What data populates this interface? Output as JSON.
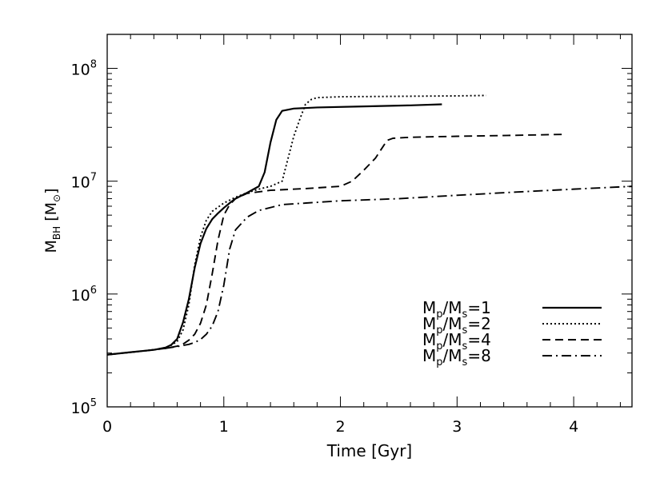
{
  "chart_data": {
    "type": "line",
    "title": "",
    "xlabel": "Time [Gyr]",
    "ylabel": {
      "base": "M",
      "sub": "BH",
      "unit": "[M",
      "unit_sub": "⊙",
      "unit_close": "]"
    },
    "xlim": [
      0,
      4.5
    ],
    "ylim": [
      100000,
      200000000
    ],
    "yscale": "log",
    "grid": false,
    "legend_placement": "bottom-right",
    "x_ticks": [
      {
        "value": 0,
        "label": "0"
      },
      {
        "value": 1,
        "label": "1"
      },
      {
        "value": 2,
        "label": "2"
      },
      {
        "value": 3,
        "label": "3"
      },
      {
        "value": 4,
        "label": "4"
      }
    ],
    "y_ticks": [
      {
        "value": 100000,
        "base": "10",
        "exp": "5"
      },
      {
        "value": 1000000,
        "base": "10",
        "exp": "6"
      },
      {
        "value": 10000000,
        "base": "10",
        "exp": "7"
      },
      {
        "value": 100000000,
        "base": "10",
        "exp": "8"
      }
    ],
    "series": [
      {
        "name": "Mp/Ms=1",
        "legend": {
          "a": "M",
          "a_sub": "p",
          "b": "/M",
          "b_sub": "s",
          "c": "=1"
        },
        "dash": "solid",
        "x": [
          0,
          0.2,
          0.4,
          0.5,
          0.55,
          0.6,
          0.65,
          0.7,
          0.75,
          0.8,
          0.85,
          0.9,
          0.95,
          1.0,
          1.05,
          1.1,
          1.2,
          1.3,
          1.35,
          1.4,
          1.45,
          1.5,
          1.6,
          1.8,
          2.2,
          2.6,
          2.87
        ],
        "y": [
          290000,
          305000,
          320000,
          335000,
          355000,
          400000,
          560000,
          900000,
          1700000,
          2800000,
          3800000,
          4600000,
          5200000,
          5800000,
          6400000,
          7000000,
          7900000,
          9000000,
          12000000,
          22000000,
          35000000,
          42000000,
          44000000,
          45000000,
          46000000,
          47000000,
          48000000
        ]
      },
      {
        "name": "Mp/Ms=2",
        "legend": {
          "a": "M",
          "a_sub": "p",
          "b": "/M",
          "b_sub": "s",
          "c": "=2"
        },
        "dash": "dotted",
        "x": [
          0,
          0.2,
          0.4,
          0.5,
          0.55,
          0.6,
          0.65,
          0.7,
          0.75,
          0.8,
          0.85,
          0.9,
          1.0,
          1.1,
          1.2,
          1.3,
          1.4,
          1.5,
          1.6,
          1.65,
          1.7,
          1.75,
          1.8,
          2.0,
          2.5,
          3.0,
          3.25
        ],
        "y": [
          290000,
          305000,
          320000,
          335000,
          352000,
          380000,
          480000,
          800000,
          1800000,
          3200000,
          4500000,
          5400000,
          6400000,
          7200000,
          7900000,
          8500000,
          9000000,
          10000000,
          25000000,
          35000000,
          48000000,
          53000000,
          55000000,
          56000000,
          56500000,
          57000000,
          57500000
        ]
      },
      {
        "name": "Mp/Ms=4",
        "legend": {
          "a": "M",
          "a_sub": "p",
          "b": "/M",
          "b_sub": "s",
          "c": "=4"
        },
        "dash": "dashed",
        "x": [
          0,
          0.3,
          0.5,
          0.6,
          0.65,
          0.7,
          0.75,
          0.8,
          0.85,
          0.9,
          0.95,
          1.0,
          1.05,
          1.1,
          1.2,
          1.4,
          1.7,
          2.0,
          2.1,
          2.2,
          2.3,
          2.4,
          2.45,
          2.6,
          3.0,
          3.5,
          3.93
        ],
        "y": [
          290000,
          312000,
          330000,
          345000,
          360000,
          390000,
          440000,
          550000,
          800000,
          1500000,
          3000000,
          5000000,
          6200000,
          7000000,
          7800000,
          8300000,
          8600000,
          9000000,
          10000000,
          12500000,
          16000000,
          23000000,
          24000000,
          24500000,
          25000000,
          25500000,
          26000000
        ]
      },
      {
        "name": "Mp/Ms=8",
        "legend": {
          "a": "M",
          "a_sub": "p",
          "b": "/M",
          "b_sub": "s",
          "c": "=8"
        },
        "dash": "dashdot",
        "x": [
          0,
          0.3,
          0.5,
          0.6,
          0.7,
          0.75,
          0.8,
          0.85,
          0.9,
          0.95,
          1.0,
          1.05,
          1.1,
          1.2,
          1.3,
          1.5,
          2.0,
          2.5,
          3.0,
          3.5,
          4.0,
          4.5
        ],
        "y": [
          290000,
          312000,
          330000,
          342000,
          358000,
          372000,
          395000,
          440000,
          520000,
          700000,
          1200000,
          2500000,
          3700000,
          4800000,
          5500000,
          6200000,
          6700000,
          7000000,
          7500000,
          8000000,
          8500000,
          9000000
        ]
      }
    ]
  }
}
